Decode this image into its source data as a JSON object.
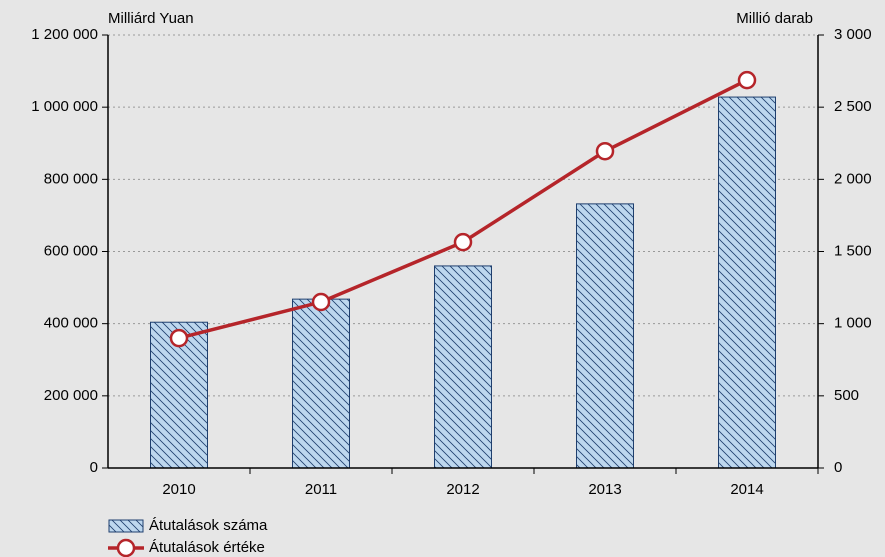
{
  "chart_data": {
    "type": "bar+line",
    "y_label": "Milliárd Yuan",
    "y2_label": "Millió darab",
    "categories": [
      "2010",
      "2011",
      "2012",
      "2013",
      "2014"
    ],
    "series": [
      {
        "name": "Átutalások száma",
        "type": "bar",
        "axis": "y2",
        "color": "#bdd7ee",
        "edge_color": "#1f3f6e",
        "values": [
          1010,
          1170,
          1400,
          1830,
          2570
        ]
      },
      {
        "name": "Átutalások értéke",
        "type": "line",
        "axis": "y",
        "color": "#b5252a",
        "values": [
          360000,
          460000,
          626000,
          878000,
          1075000
        ]
      }
    ],
    "ylim": [
      0,
      1200000
    ],
    "yticks": [
      0,
      {
        "value": 200000,
        "label": "200 000"
      },
      {
        "value": 400000,
        "label": "400 000"
      },
      {
        "value": 600000,
        "label": "600 000"
      },
      {
        "value": 800000,
        "label": "800 000"
      },
      {
        "value": 1000000,
        "label": "1 000 000"
      },
      {
        "value": 1200000,
        "label": "1 200 000"
      }
    ],
    "y2lim": [
      0,
      3000
    ],
    "y2ticks": [
      0,
      500,
      {
        "value": 1000,
        "label": "1 000"
      },
      {
        "value": 1500,
        "label": "1 500"
      },
      {
        "value": 2000,
        "label": "2 000"
      },
      {
        "value": 2500,
        "label": "2 500"
      },
      {
        "value": 3000,
        "label": "3 000"
      }
    ],
    "grid": true,
    "legend": "bottom-left"
  }
}
